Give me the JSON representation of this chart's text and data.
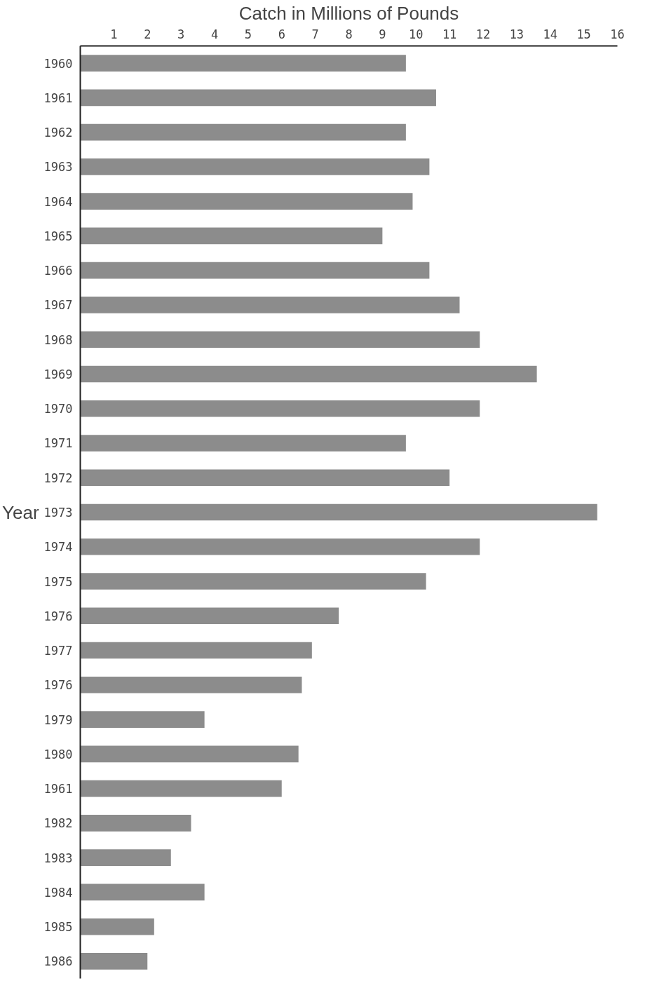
{
  "chart_data": {
    "type": "bar",
    "orientation": "horizontal",
    "xlabel": "Catch in Millions of Pounds",
    "ylabel": "Year",
    "categories": [
      "1960",
      "1961",
      "1962",
      "1963",
      "1964",
      "1965",
      "1966",
      "1967",
      "1968",
      "1969",
      "1970",
      "1971",
      "1972",
      "1973",
      "1974",
      "1975",
      "1976",
      "1977",
      "1976",
      "1979",
      "1980",
      "1961",
      "1982",
      "1983",
      "1984",
      "1985",
      "1986"
    ],
    "values": [
      9.7,
      10.6,
      9.7,
      10.4,
      9.9,
      9.0,
      10.4,
      11.3,
      11.9,
      13.6,
      11.9,
      9.7,
      11.0,
      15.4,
      11.9,
      10.3,
      7.7,
      6.9,
      6.6,
      3.7,
      6.5,
      6.0,
      3.3,
      2.7,
      3.7,
      2.2,
      2.0
    ],
    "color": "#8c8c8c",
    "xlim": [
      0,
      16
    ],
    "xticks": [
      1,
      2,
      3,
      4,
      5,
      6,
      7,
      8,
      9,
      10,
      11,
      12,
      13,
      14,
      15,
      16
    ],
    "grid": false
  }
}
